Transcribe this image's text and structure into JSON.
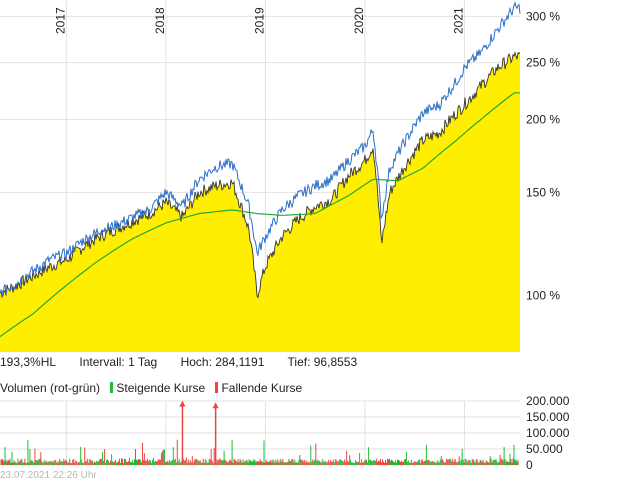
{
  "chart_data": [
    {
      "type": "area",
      "x_ticks": [
        "2017",
        "2018",
        "2019",
        "2020",
        "2021"
      ],
      "y_ticks": [
        "100 %",
        "150 %",
        "200 %",
        "250 %",
        "300 %"
      ],
      "y_tick_values": [
        100,
        150,
        200,
        250,
        300
      ],
      "y_scale": "log",
      "ylim": [
        80,
        320
      ],
      "grid": true,
      "series": [
        {
          "color": "#ffee00",
          "points": [
            [
              "2016-05",
              101
            ],
            [
              "2016-07",
              104
            ],
            [
              "2016-09",
              108
            ],
            [
              "2016-11",
              112
            ],
            [
              "2017-01",
              115
            ],
            [
              "2017-03",
              121
            ],
            [
              "2017-05",
              126
            ],
            [
              "2017-07",
              130
            ],
            [
              "2017-09",
              134
            ],
            [
              "2017-11",
              138
            ],
            [
              "2018-01",
              144
            ],
            [
              "2018-03",
              136
            ],
            [
              "2018-05",
              150
            ],
            [
              "2018-07",
              154
            ],
            [
              "2018-09",
              156
            ],
            [
              "2018-11",
              130
            ],
            [
              "2018-12",
              100
            ],
            [
              "2019-01",
              112
            ],
            [
              "2019-03",
              126
            ],
            [
              "2019-05",
              135
            ],
            [
              "2019-07",
              142
            ],
            [
              "2019-09",
              146
            ],
            [
              "2019-11",
              160
            ],
            [
              "2020-01",
              170
            ],
            [
              "2020-02",
              180
            ],
            [
              "2020-03",
              122
            ],
            [
              "2020-04",
              150
            ],
            [
              "2020-06",
              168
            ],
            [
              "2020-08",
              184
            ],
            [
              "2020-10",
              190
            ],
            [
              "2020-12",
              205
            ],
            [
              "2021-01",
              212
            ],
            [
              "2021-03",
              228
            ],
            [
              "2021-05",
              245
            ],
            [
              "2021-07",
              256
            ]
          ]
        },
        {
          "color": "#2a6fc9",
          "points": [
            [
              "2016-05",
              101
            ],
            [
              "2016-07",
              105
            ],
            [
              "2016-09",
              110
            ],
            [
              "2016-11",
              115
            ],
            [
              "2017-01",
              118
            ],
            [
              "2017-03",
              124
            ],
            [
              "2017-05",
              129
            ],
            [
              "2017-07",
              132
            ],
            [
              "2017-09",
              136
            ],
            [
              "2017-11",
              140
            ],
            [
              "2018-01",
              150
            ],
            [
              "2018-03",
              142
            ],
            [
              "2018-05",
              158
            ],
            [
              "2018-07",
              166
            ],
            [
              "2018-09",
              168
            ],
            [
              "2018-11",
              142
            ],
            [
              "2018-12",
              118
            ],
            [
              "2019-01",
              126
            ],
            [
              "2019-03",
              140
            ],
            [
              "2019-05",
              148
            ],
            [
              "2019-07",
              154
            ],
            [
              "2019-09",
              158
            ],
            [
              "2019-11",
              170
            ],
            [
              "2020-01",
              180
            ],
            [
              "2020-02",
              192
            ],
            [
              "2020-03",
              135
            ],
            [
              "2020-04",
              165
            ],
            [
              "2020-06",
              185
            ],
            [
              "2020-08",
              205
            ],
            [
              "2020-10",
              212
            ],
            [
              "2020-12",
              232
            ],
            [
              "2021-01",
              245
            ],
            [
              "2021-03",
              260
            ],
            [
              "2021-05",
              285
            ],
            [
              "2021-07",
              310
            ]
          ]
        },
        {
          "color": "#22aa33",
          "points": [
            [
              "2016-05",
              85
            ],
            [
              "2016-09",
              93
            ],
            [
              "2017-01",
              104
            ],
            [
              "2017-05",
              115
            ],
            [
              "2017-09",
              125
            ],
            [
              "2018-01",
              133
            ],
            [
              "2018-05",
              138
            ],
            [
              "2018-09",
              140
            ],
            [
              "2018-12",
              138
            ],
            [
              "2019-03",
              137
            ],
            [
              "2019-07",
              138
            ],
            [
              "2019-11",
              148
            ],
            [
              "2020-02",
              158
            ],
            [
              "2020-05",
              157
            ],
            [
              "2020-08",
              165
            ],
            [
              "2020-12",
              184
            ],
            [
              "2021-03",
              200
            ],
            [
              "2021-07",
              222
            ]
          ]
        }
      ]
    },
    {
      "type": "bar",
      "y_ticks": [
        "200.000",
        "150.000",
        "100.000",
        "50.000",
        "0"
      ],
      "y_tick_values": [
        200000,
        150000,
        100000,
        50000,
        0
      ],
      "ylim": [
        0,
        200000
      ],
      "series": [
        {
          "name": "Steigende Kurse",
          "color": "#22bb33"
        },
        {
          "name": "Fallende Kurse",
          "color": "#ee4444"
        }
      ],
      "spikes": [
        {
          "date": "2018-03",
          "value": 195000
        },
        {
          "date": "2018-07",
          "value": 190000
        }
      ]
    }
  ],
  "info": {
    "hl": "193,3%HL",
    "interval": "Intervall: 1 Tag",
    "high": "Hoch: 284,1191",
    "low": "Tief: 96,8553"
  },
  "volume": {
    "title": "Volumen (rot-grün)",
    "rising": "Steigende Kurse",
    "falling": "Fallende Kurse",
    "rising_color": "#22bb33",
    "falling_color": "#ee4444"
  },
  "footer": {
    "timestamp": "23.07.2021 22:26 Uhr"
  }
}
